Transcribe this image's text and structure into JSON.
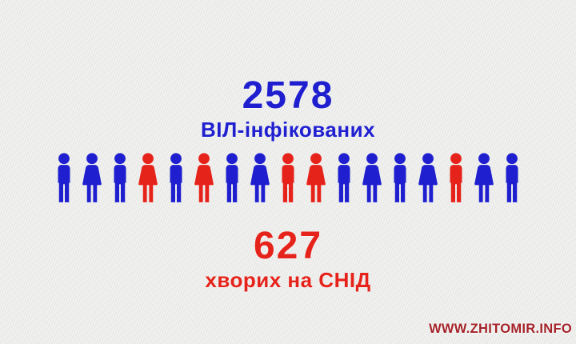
{
  "colors": {
    "blue": "#1f1fd0",
    "red": "#e6231b",
    "background": "#ecedeb",
    "watermark_red": "#a32329"
  },
  "top_stat": {
    "value": "2578",
    "label": "ВІЛ-інфікованих"
  },
  "bottom_stat": {
    "value": "627",
    "label": "хворих на СНІД"
  },
  "watermark": {
    "text": "WWW.ZHITOMIR.INFO"
  },
  "people": [
    {
      "gender": "male",
      "color": "blue"
    },
    {
      "gender": "female",
      "color": "blue"
    },
    {
      "gender": "male",
      "color": "blue"
    },
    {
      "gender": "female",
      "color": "red"
    },
    {
      "gender": "male",
      "color": "blue"
    },
    {
      "gender": "female",
      "color": "red"
    },
    {
      "gender": "male",
      "color": "blue"
    },
    {
      "gender": "female",
      "color": "blue"
    },
    {
      "gender": "male",
      "color": "red"
    },
    {
      "gender": "female",
      "color": "red"
    },
    {
      "gender": "male",
      "color": "blue"
    },
    {
      "gender": "female",
      "color": "blue"
    },
    {
      "gender": "male",
      "color": "blue"
    },
    {
      "gender": "female",
      "color": "blue"
    },
    {
      "gender": "male",
      "color": "red"
    },
    {
      "gender": "female",
      "color": "blue"
    },
    {
      "gender": "male",
      "color": "blue"
    }
  ],
  "chart_data": {
    "type": "pictogram",
    "title": "",
    "series": [
      {
        "name": "ВІЛ-інфікованих",
        "value": 2578,
        "color": "#1f1fd0"
      },
      {
        "name": "хворих на СНІД",
        "value": 627,
        "color": "#e6231b"
      }
    ],
    "pictogram": {
      "total_icons": 17,
      "blue_icons": 12,
      "red_icons": 5,
      "icon_sequence": [
        "male-blue",
        "female-blue",
        "male-blue",
        "female-red",
        "male-blue",
        "female-red",
        "male-blue",
        "female-blue",
        "male-red",
        "female-red",
        "male-blue",
        "female-blue",
        "male-blue",
        "female-blue",
        "male-red",
        "female-blue",
        "male-blue"
      ]
    },
    "legend_position": "none"
  }
}
